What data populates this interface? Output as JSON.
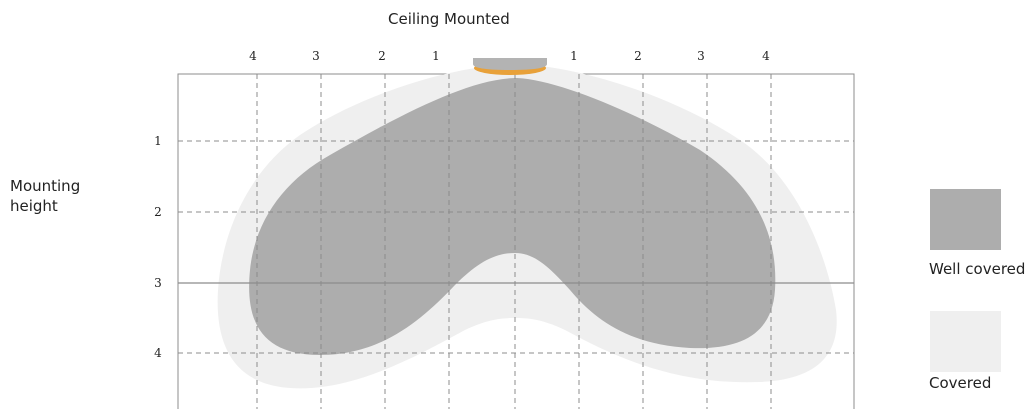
{
  "title": "Ceiling Mounted",
  "y_axis_label": "Mounting height",
  "x_ticks_left": [
    "4",
    "3",
    "2",
    "1"
  ],
  "x_ticks_right": [
    "1",
    "2",
    "3",
    "4"
  ],
  "y_ticks": [
    "1",
    "2",
    "3",
    "4"
  ],
  "legend": {
    "well_covered": "Well covered",
    "covered": "Covered"
  },
  "colors": {
    "well_covered": "#adadad",
    "covered": "#efefef",
    "sensor_body": "#b3b3b3",
    "sensor_lens": "#e8a13a",
    "grid": "#8c8c8c",
    "frame": "#8c8c8c"
  },
  "sensor_icon": "ceiling-sensor-icon"
}
